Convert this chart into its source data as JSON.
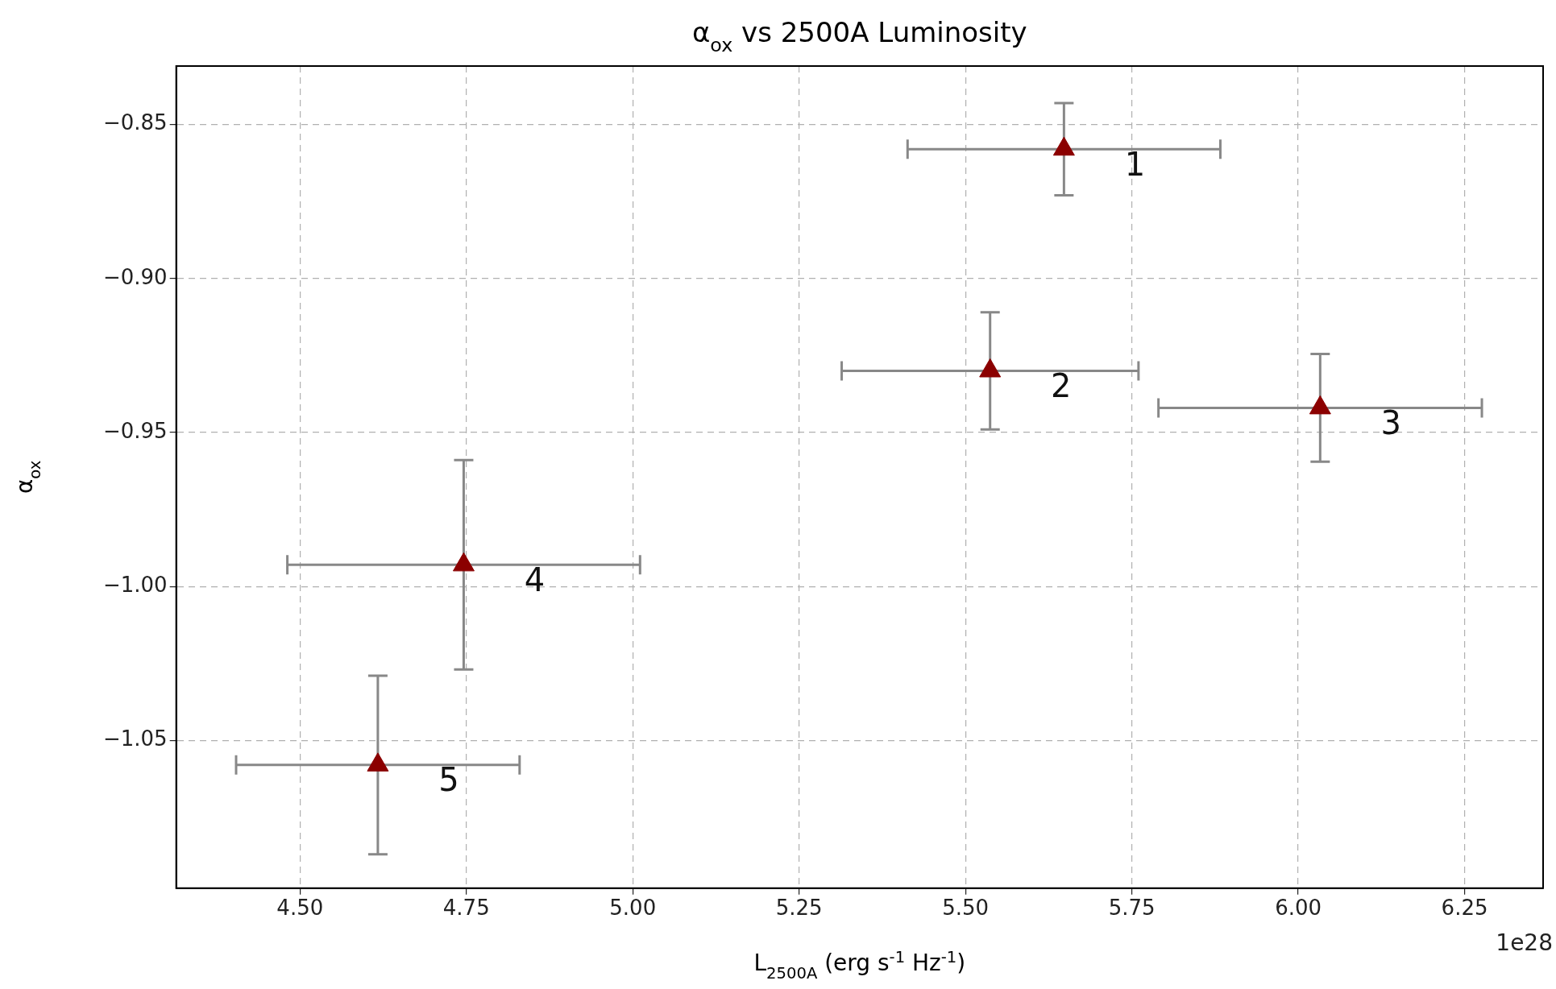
{
  "chart_data": {
    "type": "scatter",
    "title": "α$_{ox}$ vs 2500A Luminosity",
    "xlabel": "L$_{2500A}$ (erg s$^{-1}$ Hz$^{-1}$)",
    "ylabel": "α$_{ox}$",
    "xlim": [
      4.314,
      6.368
    ],
    "ylim": [
      -1.098,
      -0.831
    ],
    "xticks": [
      {
        "value": 4.5,
        "label": "4.50"
      },
      {
        "value": 4.75,
        "label": "4.75"
      },
      {
        "value": 5.0,
        "label": "5.00"
      },
      {
        "value": 5.25,
        "label": "5.25"
      },
      {
        "value": 5.5,
        "label": "5.50"
      },
      {
        "value": 5.75,
        "label": "5.75"
      },
      {
        "value": 6.0,
        "label": "6.00"
      },
      {
        "value": 6.25,
        "label": "6.25"
      }
    ],
    "yticks": [
      {
        "value": -0.85,
        "label": "−0.85"
      },
      {
        "value": -0.9,
        "label": "−0.90"
      },
      {
        "value": -0.95,
        "label": "−0.95"
      },
      {
        "value": -1.0,
        "label": "−1.00"
      },
      {
        "value": -1.05,
        "label": "−1.05"
      }
    ],
    "grid": true,
    "marker": "triangle",
    "legend": false,
    "series": [
      {
        "color": "#8b0000",
        "x": [
          5.648,
          5.537,
          6.033,
          4.746,
          4.617
        ],
        "values": [
          -0.858,
          -0.93,
          -0.942,
          -0.993,
          -1.058
        ],
        "errors": [
          0.015,
          0.019,
          0.0175,
          0.034,
          0.029
        ],
        "xerrors": [
          0.235,
          0.223,
          0.243,
          0.265,
          0.213
        ]
      }
    ],
    "annotations": [
      {
        "text": "1",
        "x": 5.648,
        "y": -0.858
      },
      {
        "text": "2",
        "x": 5.537,
        "y": -0.93
      },
      {
        "text": "3",
        "x": 6.033,
        "y": -0.942
      },
      {
        "text": "4",
        "x": 4.746,
        "y": -0.993
      },
      {
        "text": "5",
        "x": 4.617,
        "y": -1.058
      },
      "1e28"
    ]
  }
}
